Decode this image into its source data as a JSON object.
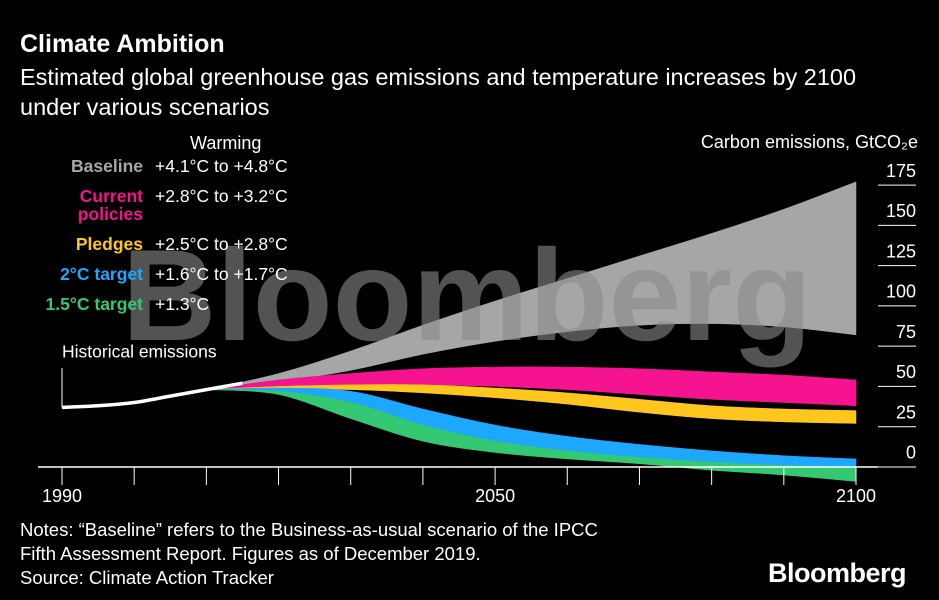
{
  "chart_data": {
    "type": "band",
    "title": "Climate Ambition",
    "subtitle": "Estimated global greenhouse gas emissions and temperature increases by 2100 under various scenarios",
    "legend_header": "Warming",
    "y_axis_label": "Carbon emissions, GtCO₂e",
    "watermark": "Bloomberg",
    "historical": {
      "name": "Historical emissions",
      "color": "#ffffff",
      "x": [
        1990,
        1995,
        2000,
        2005,
        2010,
        2015
      ],
      "values": [
        37,
        38,
        40,
        44,
        48,
        52
      ]
    },
    "x": [
      2010,
      2020,
      2030,
      2040,
      2050,
      2060,
      2070,
      2080,
      2090,
      2100
    ],
    "series": [
      {
        "name": "Baseline",
        "warming": "+4.1°C to +4.8°C",
        "color": "#a6a6a6",
        "upper": [
          48,
          58,
          72,
          88,
          103,
          117,
          131,
          145,
          160,
          177
        ],
        "lower": [
          48,
          53,
          60,
          70,
          78,
          84,
          88,
          89,
          87,
          82
        ]
      },
      {
        "name": "Current policies",
        "warming": "+2.8°C to +3.2°C",
        "color": "#f5138f",
        "upper": [
          48,
          54,
          58,
          61,
          62,
          62,
          61,
          59,
          57,
          54
        ],
        "lower": [
          48,
          50,
          51,
          51,
          50,
          48,
          45,
          42,
          40,
          38
        ]
      },
      {
        "name": "Pledges",
        "warming": "+2.5°C to +2.8°C",
        "color": "#ffc61e",
        "upper": [
          48,
          50,
          51,
          51,
          49,
          46,
          42,
          38,
          36,
          35
        ],
        "lower": [
          48,
          48,
          48,
          46,
          43,
          39,
          34,
          30,
          28,
          27
        ]
      },
      {
        "name": "2°C target",
        "warming": "+1.6°C to +1.7°C",
        "color": "#1ea7ff",
        "upper": [
          48,
          49,
          47,
          36,
          26,
          19,
          14,
          10,
          7,
          5
        ],
        "lower": [
          48,
          47,
          40,
          26,
          16,
          10,
          6,
          3,
          1,
          0
        ]
      },
      {
        "name": "1.5°C target",
        "warming": "+1.3°C",
        "color": "#35c873",
        "upper": [
          48,
          47,
          40,
          26,
          16,
          10,
          6,
          3,
          1,
          0
        ],
        "lower": [
          48,
          45,
          30,
          16,
          9,
          5,
          2,
          -2,
          -5,
          -9
        ]
      }
    ],
    "xlim": [
      1990,
      2100
    ],
    "xticks": [
      1990,
      2050,
      2100
    ],
    "xminorticks": [
      2000,
      2010,
      2020,
      2030,
      2040,
      2060,
      2070,
      2080,
      2090
    ],
    "ylim": [
      -12,
      182
    ],
    "yticks": [
      0,
      25,
      50,
      75,
      100,
      125,
      150,
      175
    ],
    "notes": [
      "Notes: “Baseline” refers to the Business-as-usual scenario of the IPCC",
      "Fifth Assessment Report. Figures as of December 2019."
    ],
    "source": "Source: Climate Action Tracker",
    "logo": "Bloomberg"
  }
}
